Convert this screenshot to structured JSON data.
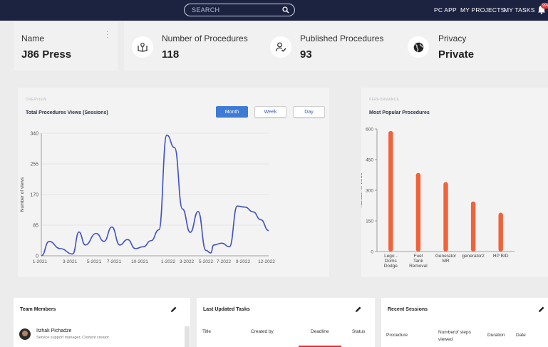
{
  "topbar": {
    "search_placeholder": "SEARCH",
    "nav": [
      "PC APP",
      "MY PROJECTS",
      "MY TASKS"
    ],
    "badge": "99+"
  },
  "stats": {
    "name_label": "Name",
    "name_value": "J86 Press",
    "procedures_label": "Number of Procedures",
    "procedures_value": "118",
    "published_label": "Published Procedures",
    "published_value": "93",
    "privacy_label": "Privacy",
    "privacy_value": "Private"
  },
  "overview": {
    "overline": "OVERVIEW",
    "title": "Total Procedures Views (Sessions)",
    "buttons": [
      "Month",
      "Week",
      "Day"
    ],
    "active_button": "Month"
  },
  "performance": {
    "overline": "PERFORMANCE",
    "title": "Most Popular Procedures"
  },
  "team": {
    "title": "Team Members",
    "member_name": "Itzhak Pichadze",
    "member_role": "Service support manager, Content creator"
  },
  "tasks": {
    "title": "Last Updated Tasks",
    "columns": [
      "Title",
      "Created by",
      "Deadline",
      "Status"
    ]
  },
  "sessions": {
    "title": "Recent Sessions",
    "columns": [
      "Procedure",
      "Numberof steps viewed",
      "Duration",
      "Date"
    ]
  },
  "colors": {
    "topbar": "#1c2340",
    "line": "#3f51c5",
    "bars": "#f0623a",
    "accent": "#3d7bd5"
  },
  "chart_data": [
    {
      "type": "line",
      "ylabel": "Number of views",
      "ylim": [
        0,
        340
      ],
      "yticks": [
        0,
        85,
        170,
        255,
        340
      ],
      "xticks": [
        "1-2021",
        "3-2021",
        "5-2021",
        "7-2021",
        "10-2021",
        "1-2022",
        "3-2022",
        "5-2022",
        "7-2022",
        "9-2022",
        "12-2022"
      ],
      "series": [
        {
          "x": [
            0.0,
            0.5,
            1.2,
            2.0,
            2.4,
            2.8,
            3.5,
            4.0,
            4.5,
            5.0,
            5.5,
            6.0,
            6.5,
            7.0,
            7.5,
            8.0,
            8.5,
            9.0,
            9.5,
            10.0,
            10.5,
            10.8,
            11.0,
            11.5,
            12.0,
            12.5,
            13.0,
            13.5,
            14.0,
            14.5,
            15.0,
            15.5,
            16.0,
            16.5,
            17.0,
            17.5,
            18.0,
            18.5,
            19.0,
            19.5,
            20.0,
            21.0,
            22.0,
            23.0
          ],
          "y": [
            0,
            40,
            20,
            5,
            66,
            30,
            62,
            40,
            80,
            30,
            45,
            20,
            25,
            42,
            72,
            335,
            300,
            130,
            65,
            123,
            15,
            8,
            30,
            35,
            25,
            138,
            135,
            122,
            100,
            70,
            0,
            0,
            0,
            0,
            0,
            0,
            0,
            0,
            0,
            0,
            0,
            0,
            0,
            0
          ]
        }
      ]
    },
    {
      "type": "bar",
      "ylabel": "Number of views",
      "ylim": [
        0,
        600
      ],
      "yticks": [
        0,
        150,
        300,
        450,
        600
      ],
      "categories": [
        "Lego - Doms Dodge",
        "Fuel Tank Removal",
        "Generator MR",
        "generator2",
        "HP BID"
      ],
      "values": [
        590,
        385,
        340,
        245,
        190
      ]
    }
  ]
}
